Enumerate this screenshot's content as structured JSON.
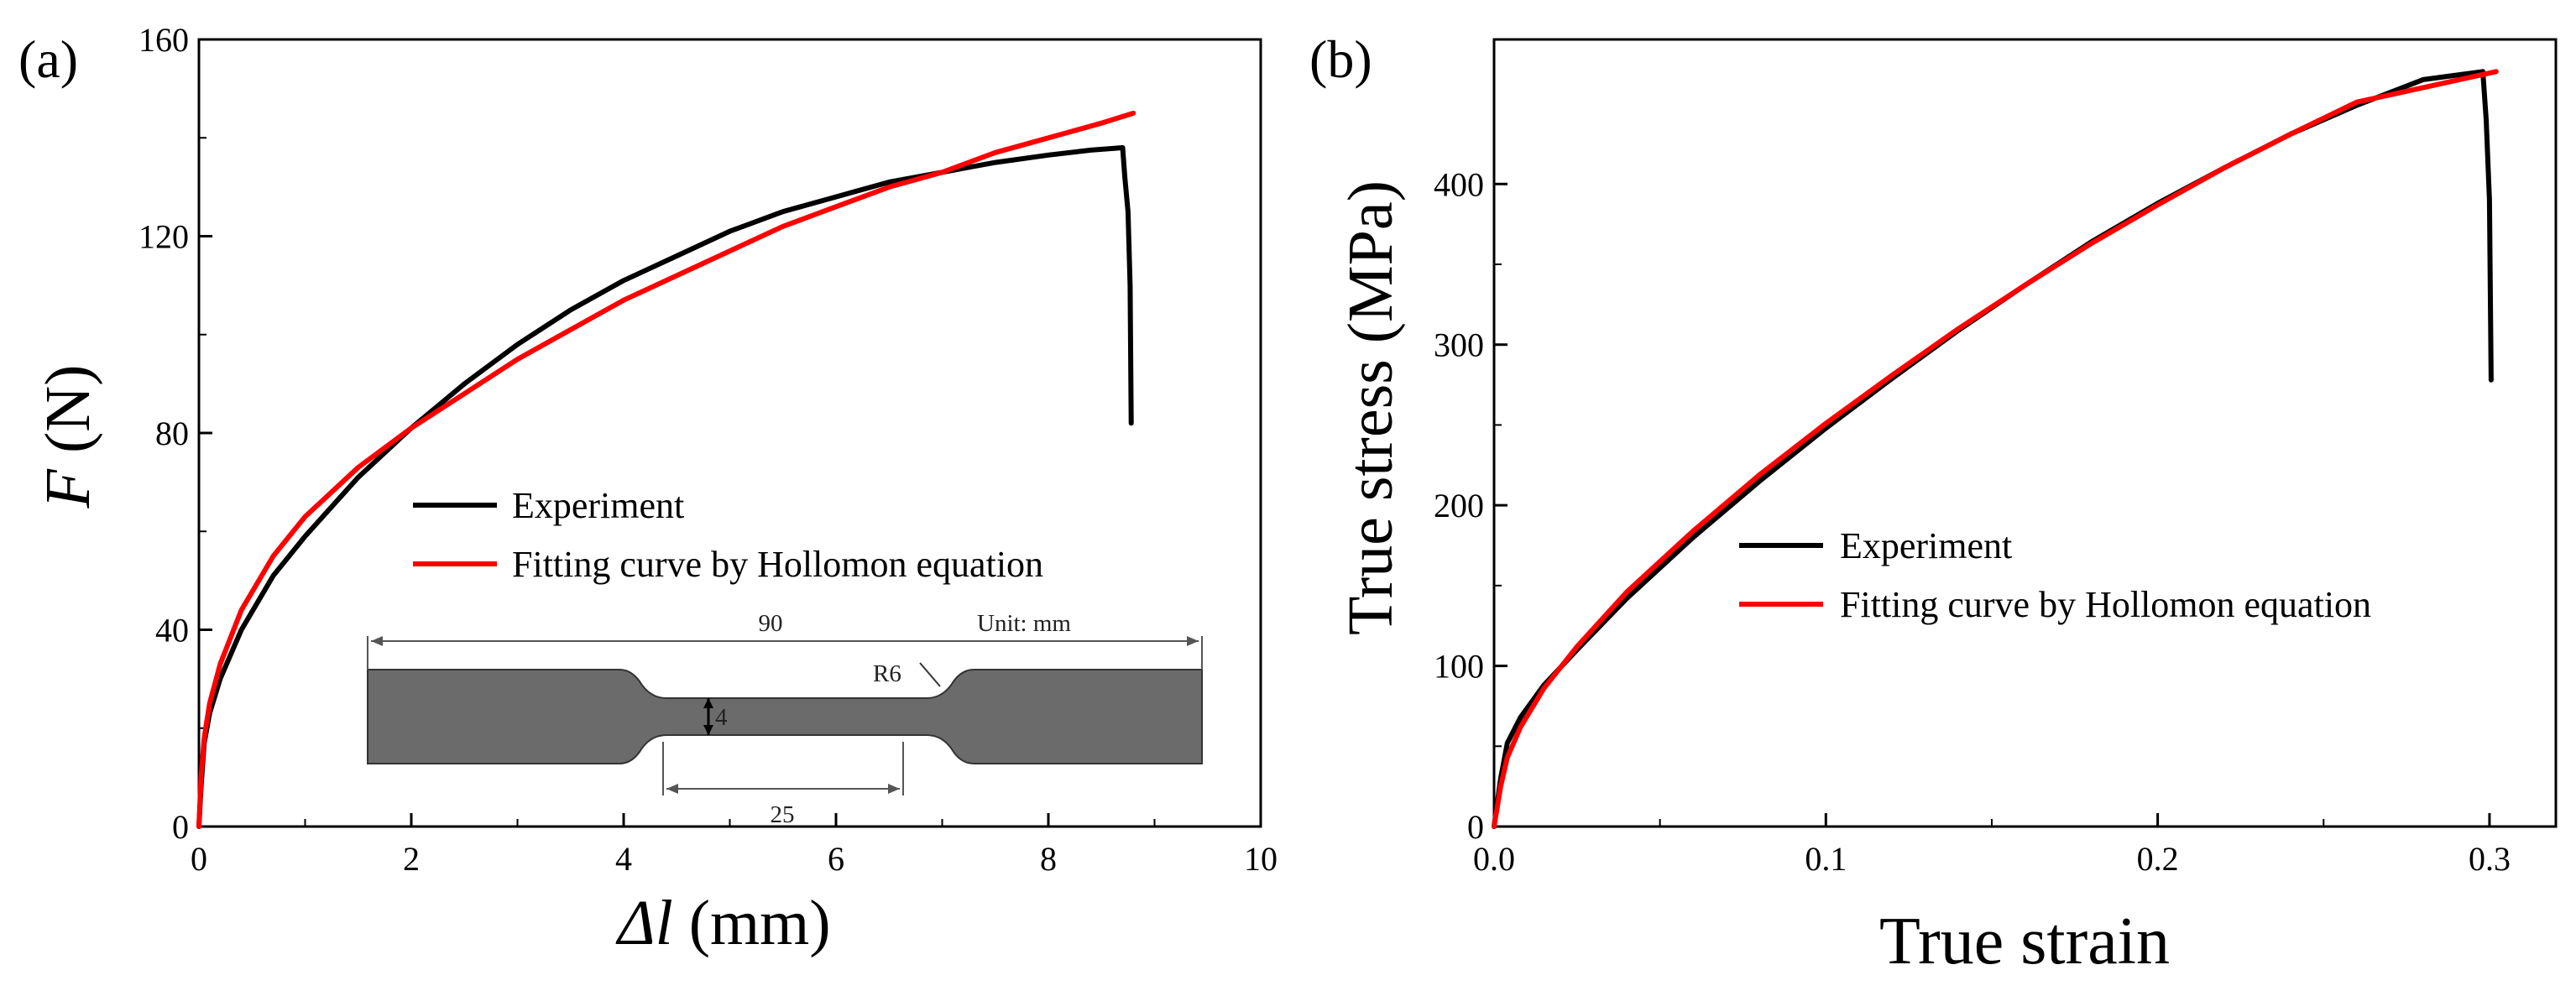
{
  "chart_data": [
    {
      "type": "line",
      "panel_label": "(a)",
      "title": "",
      "xlabel_symbol": "Δl",
      "xlabel_unit": "(mm)",
      "ylabel_symbol": "F",
      "ylabel_unit": "(N)",
      "xlim": [
        0,
        10
      ],
      "ylim": [
        0,
        160
      ],
      "x_ticks": [
        0,
        2,
        4,
        6,
        8,
        10
      ],
      "y_ticks": [
        0,
        40,
        80,
        120,
        160
      ],
      "legend_position": "center-right",
      "series": [
        {
          "name": "Experiment",
          "color": "#000000",
          "x": [
            0,
            0.02,
            0.05,
            0.1,
            0.2,
            0.4,
            0.7,
            1.0,
            1.5,
            2.0,
            2.5,
            3.0,
            3.5,
            4.0,
            4.5,
            5.0,
            5.5,
            6.0,
            6.5,
            7.0,
            7.5,
            8.0,
            8.4,
            8.7,
            8.72,
            8.75,
            8.77,
            8.78
          ],
          "y": [
            0,
            8,
            17,
            23,
            30,
            40,
            51,
            59,
            71,
            81,
            90,
            98,
            105,
            111,
            116,
            121,
            125,
            128,
            131,
            133,
            135,
            136.5,
            137.5,
            138,
            132,
            125,
            110,
            82
          ]
        },
        {
          "name": "Fitting curve by Hollomon equation",
          "color": "#ff0000",
          "x": [
            0,
            0.02,
            0.05,
            0.1,
            0.2,
            0.4,
            0.7,
            1.0,
            1.5,
            2.0,
            2.5,
            3.0,
            3.5,
            4.0,
            4.5,
            5.0,
            5.5,
            6.0,
            6.5,
            7.0,
            7.5,
            8.0,
            8.5,
            8.8
          ],
          "y": [
            0,
            10,
            18,
            25,
            33,
            44,
            55,
            63,
            73,
            81,
            88,
            95,
            101,
            107,
            112,
            117,
            122,
            126,
            130,
            133,
            137,
            140,
            143,
            145
          ]
        }
      ],
      "inset": {
        "overall_length": "90",
        "unit_label": "Unit: mm",
        "radius_label": "R6",
        "width_label": "4",
        "gauge_length": "25"
      }
    },
    {
      "type": "line",
      "panel_label": "(b)",
      "title": "",
      "xlabel": "True strain",
      "ylabel": "True stress (MPa)",
      "xlim": [
        0,
        0.32
      ],
      "ylim": [
        0,
        490
      ],
      "x_ticks": [
        0.0,
        0.1,
        0.2,
        0.3
      ],
      "x_tick_labels": [
        "0.0",
        "0.1",
        "0.2",
        "0.3"
      ],
      "y_ticks": [
        0,
        100,
        200,
        300,
        400
      ],
      "legend_position": "center",
      "series": [
        {
          "name": "Experiment",
          "color": "#000000",
          "x": [
            0,
            0.002,
            0.004,
            0.008,
            0.015,
            0.025,
            0.04,
            0.06,
            0.08,
            0.1,
            0.12,
            0.14,
            0.16,
            0.18,
            0.2,
            0.22,
            0.24,
            0.26,
            0.28,
            0.298,
            0.299,
            0.3,
            0.3005
          ],
          "y": [
            0,
            30,
            52,
            68,
            88,
            110,
            142,
            180,
            215,
            248,
            279,
            309,
            337,
            364,
            388,
            410,
            431,
            449,
            465,
            470,
            440,
            390,
            278
          ]
        },
        {
          "name": "Fitting curve by Hollomon equation",
          "color": "#ff0000",
          "x": [
            0,
            0.002,
            0.004,
            0.008,
            0.015,
            0.025,
            0.04,
            0.06,
            0.08,
            0.1,
            0.12,
            0.14,
            0.16,
            0.18,
            0.2,
            0.22,
            0.24,
            0.26,
            0.28,
            0.302
          ],
          "y": [
            0,
            25,
            43,
            62,
            86,
            112,
            146,
            184,
            219,
            251,
            281,
            310,
            337,
            363,
            387,
            410,
            431,
            451,
            460,
            470
          ]
        }
      ]
    }
  ]
}
